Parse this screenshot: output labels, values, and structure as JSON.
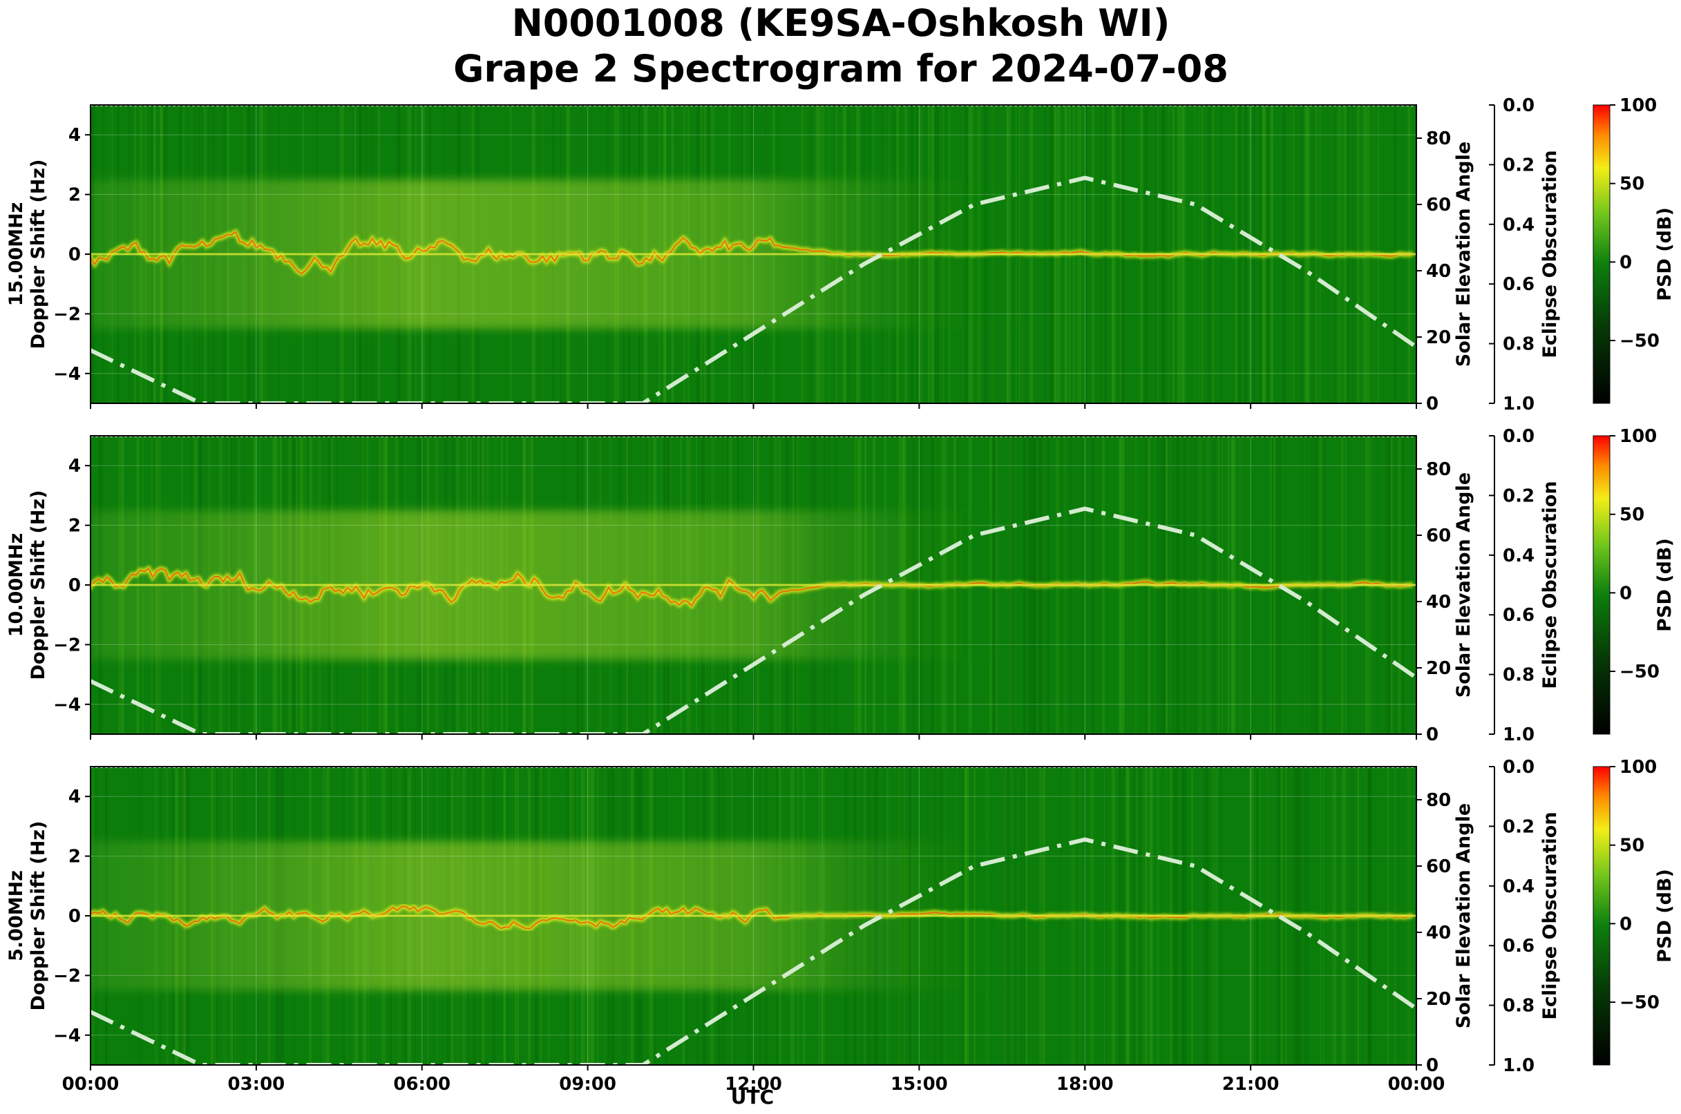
{
  "title_line1": "N0001008 (KE9SA-Oshkosh WI)",
  "title_line2": "Grape 2 Spectrogram for 2024-07-08",
  "colors": {
    "background_green": "#0b7d0b",
    "signal_yellow": "#e8ee1c",
    "peak_red": "#ff2a00",
    "solar_curve": "#d4ebd0"
  },
  "chart_data": [
    {
      "type": "heatmap",
      "panel_label": "15.00MHz",
      "ylabel": "Doppler Shift (Hz)",
      "xlabel": "",
      "ylim": [
        -5,
        5
      ],
      "yticks": [
        "4",
        "2",
        "0",
        "−2",
        "−4"
      ],
      "ytick_values": [
        4,
        2,
        0,
        -2,
        -4
      ],
      "right_axis_label": "Solar Elevation Angle",
      "right_ylim": [
        0,
        90
      ],
      "right_ticks": [
        "80",
        "60",
        "40",
        "20",
        "0"
      ],
      "right_tick_values": [
        80,
        60,
        40,
        20,
        0
      ],
      "eclipse_label": "Eclipse Obscuration",
      "eclipse_ylim": [
        0.0,
        1.0
      ],
      "eclipse_ticks": [
        "0.0",
        "0.2",
        "0.4",
        "0.6",
        "0.8",
        "1.0"
      ],
      "eclipse_tick_values": [
        0.0,
        0.2,
        0.4,
        0.6,
        0.8,
        1.0
      ],
      "colorbar_label": "PSD (dB)",
      "colorbar_range": [
        -90,
        100
      ],
      "colorbar_ticks": [
        "100",
        "50",
        "0",
        "−50"
      ],
      "colorbar_tick_values": [
        100,
        50,
        0,
        -50
      ],
      "solar_elevation": {
        "x_hours": [
          0,
          2,
          4,
          6,
          8,
          10,
          12,
          14,
          16,
          18,
          20,
          22,
          24
        ],
        "degrees": [
          16,
          0,
          0,
          0,
          0,
          0,
          21,
          42,
          60,
          68,
          60,
          40,
          17
        ]
      }
    },
    {
      "type": "heatmap",
      "panel_label": "10.00MHz",
      "ylabel": "Doppler Shift (Hz)",
      "xlabel": "",
      "ylim": [
        -5,
        5
      ],
      "yticks": [
        "4",
        "2",
        "0",
        "−2",
        "−4"
      ],
      "ytick_values": [
        4,
        2,
        0,
        -2,
        -4
      ],
      "right_axis_label": "Solar Elevation Angle",
      "right_ylim": [
        0,
        90
      ],
      "right_ticks": [
        "80",
        "60",
        "40",
        "20",
        "0"
      ],
      "right_tick_values": [
        80,
        60,
        40,
        20,
        0
      ],
      "eclipse_label": "Eclipse Obscuration",
      "eclipse_ylim": [
        0.0,
        1.0
      ],
      "eclipse_ticks": [
        "0.0",
        "0.2",
        "0.4",
        "0.6",
        "0.8",
        "1.0"
      ],
      "eclipse_tick_values": [
        0.0,
        0.2,
        0.4,
        0.6,
        0.8,
        1.0
      ],
      "colorbar_label": "PSD (dB)",
      "colorbar_range": [
        -90,
        100
      ],
      "colorbar_ticks": [
        "100",
        "50",
        "0",
        "−50"
      ],
      "colorbar_tick_values": [
        100,
        50,
        0,
        -50
      ],
      "solar_elevation": {
        "x_hours": [
          0,
          2,
          4,
          6,
          8,
          10,
          12,
          14,
          16,
          18,
          20,
          22,
          24
        ],
        "degrees": [
          16,
          0,
          0,
          0,
          0,
          0,
          21,
          42,
          60,
          68,
          60,
          40,
          17
        ]
      }
    },
    {
      "type": "heatmap",
      "panel_label": "5.00MHz",
      "ylabel": "Doppler Shift (Hz)",
      "xlabel": "UTC",
      "ylim": [
        -5,
        5
      ],
      "yticks": [
        "4",
        "2",
        "0",
        "−2",
        "−4"
      ],
      "ytick_values": [
        4,
        2,
        0,
        -2,
        -4
      ],
      "right_axis_label": "Solar Elevation Angle",
      "right_ylim": [
        0,
        90
      ],
      "right_ticks": [
        "80",
        "60",
        "40",
        "20",
        "0"
      ],
      "right_tick_values": [
        80,
        60,
        40,
        20,
        0
      ],
      "eclipse_label": "Eclipse Obscuration",
      "eclipse_ylim": [
        0.0,
        1.0
      ],
      "eclipse_ticks": [
        "0.0",
        "0.2",
        "0.4",
        "0.6",
        "0.8",
        "1.0"
      ],
      "eclipse_tick_values": [
        0.0,
        0.2,
        0.4,
        0.6,
        0.8,
        1.0
      ],
      "colorbar_label": "PSD (dB)",
      "colorbar_range": [
        -90,
        100
      ],
      "colorbar_ticks": [
        "100",
        "50",
        "0",
        "−50"
      ],
      "colorbar_tick_values": [
        100,
        50,
        0,
        -50
      ],
      "solar_elevation": {
        "x_hours": [
          0,
          2,
          4,
          6,
          8,
          10,
          12,
          14,
          16,
          18,
          20,
          22,
          24
        ],
        "degrees": [
          16,
          0,
          0,
          0,
          0,
          0,
          21,
          42,
          60,
          68,
          60,
          40,
          17
        ]
      }
    }
  ],
  "x_axis": {
    "label": "UTC",
    "xlim_hours": [
      0,
      24
    ],
    "ticks": [
      "00:00",
      "03:00",
      "06:00",
      "09:00",
      "12:00",
      "15:00",
      "18:00",
      "21:00",
      "00:00"
    ],
    "tick_hours": [
      0,
      3,
      6,
      9,
      12,
      15,
      18,
      21,
      24
    ]
  }
}
